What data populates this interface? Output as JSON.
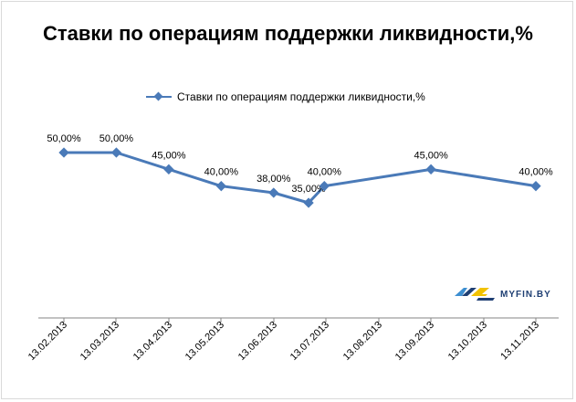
{
  "chart_data": {
    "type": "line",
    "title": "Ставки по операциям поддержки ликвидности,%",
    "legend_position": "top",
    "grid": false,
    "categories": [
      "13.02.2013",
      "13.03.2013",
      "13.04.2013",
      "13.05.2013",
      "13.06.2013",
      "13.07.2013",
      "13.08.2013",
      "13.09.2013",
      "13.10.2013",
      "13.11.2013"
    ],
    "series": [
      {
        "name": "Ставки по операциям поддержки ликвидности,%",
        "color": "#4a7ab8",
        "points": [
          {
            "x": "13.02.2013",
            "y": 50,
            "label": "50,00%"
          },
          {
            "x": "13.03.2013",
            "y": 50,
            "label": "50,00%"
          },
          {
            "x": "13.04.2013",
            "y": 45,
            "label": "45,00%"
          },
          {
            "x": "13.05.2013",
            "y": 40,
            "label": "40,00%"
          },
          {
            "x": "13.06.2013",
            "y": 38,
            "label": "38,00%"
          },
          {
            "x": "2013-07-03",
            "y": 35,
            "label": "35,00%"
          },
          {
            "x": "2013-07-12",
            "y": 40,
            "label": "40,00%"
          },
          {
            "x": "13.09.2013",
            "y": 45,
            "label": "45,00%"
          },
          {
            "x": "13.11.2013",
            "y": 40,
            "label": "40,00%"
          }
        ]
      }
    ],
    "x_axis_type": "date",
    "xlim": [
      "2013-02-13",
      "2013-11-13"
    ],
    "ylim": [
      0,
      60
    ]
  },
  "logo": {
    "text": "MYFIN.BY"
  }
}
